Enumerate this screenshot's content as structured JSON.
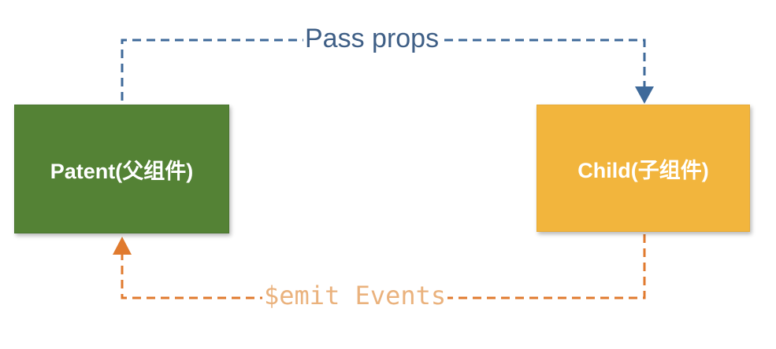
{
  "nodes": {
    "parent": {
      "label": "Patent(父组件)"
    },
    "child": {
      "label": "Child(子组件)"
    }
  },
  "edges": {
    "pass_props": {
      "label": "Pass props",
      "color": "#3f5f86"
    },
    "emit_events": {
      "label": "$emit Events",
      "color": "#e07a2e"
    }
  },
  "colors": {
    "parent_fill": "#548235",
    "child_fill": "#f2b53d"
  }
}
